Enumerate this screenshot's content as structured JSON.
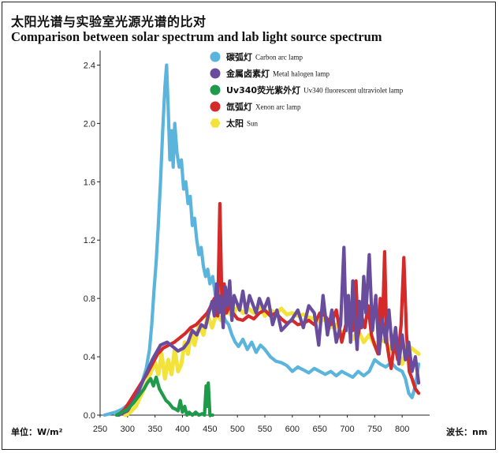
{
  "chart_data": {
    "type": "line",
    "title": "太阳光谱与实验室光源光谱的比对",
    "subtitle": "Comparison between solar spectrum and lab light source spectrum",
    "ylabel": "单位：W/m²",
    "xlabel": "波长：nm",
    "xlim": [
      250,
      850
    ],
    "ylim": [
      0,
      2.5
    ],
    "x_ticks": [
      "250",
      "300",
      "350",
      "400",
      "450",
      "500",
      "550",
      "600",
      "650",
      "700",
      "750",
      "800"
    ],
    "y_ticks": [
      "0.0",
      "0.4",
      "0.8",
      "1.2",
      "1.6",
      "2.0",
      "2.4"
    ],
    "series": [
      {
        "name_cn": "碳弧灯",
        "name_en": "Carbon arc lamp",
        "color": "#5bb4dc",
        "marker": "circle",
        "x": [
          258,
          268,
          278,
          290,
          300,
          310,
          318,
          326,
          334,
          340,
          344,
          348,
          352,
          356,
          360,
          364,
          368,
          371,
          374,
          377,
          380,
          383,
          386,
          390,
          394,
          398,
          402,
          406,
          410,
          414,
          418,
          422,
          426,
          430,
          434,
          438,
          442,
          446,
          450,
          455,
          460,
          466,
          472,
          478,
          484,
          490,
          496,
          502,
          510,
          518,
          526,
          534,
          542,
          550,
          560,
          570,
          580,
          590,
          600,
          610,
          620,
          630,
          640,
          650,
          660,
          670,
          680,
          690,
          700,
          710,
          720,
          730,
          740,
          750,
          760,
          770,
          780,
          790,
          800,
          806,
          812,
          818,
          824,
          830
        ],
        "y": [
          0.0,
          0.01,
          0.02,
          0.04,
          0.07,
          0.11,
          0.16,
          0.22,
          0.32,
          0.45,
          0.62,
          0.85,
          1.05,
          1.3,
          1.6,
          1.95,
          2.25,
          2.4,
          2.1,
          1.75,
          1.95,
          1.7,
          2.0,
          1.8,
          1.7,
          1.75,
          1.55,
          1.6,
          1.45,
          1.5,
          1.3,
          1.35,
          1.2,
          1.1,
          1.15,
          1.02,
          0.95,
          1.0,
          0.9,
          0.95,
          0.82,
          0.75,
          0.7,
          0.65,
          0.62,
          0.55,
          0.5,
          0.47,
          0.52,
          0.45,
          0.5,
          0.43,
          0.48,
          0.45,
          0.4,
          0.37,
          0.36,
          0.34,
          0.3,
          0.33,
          0.31,
          0.29,
          0.32,
          0.3,
          0.28,
          0.3,
          0.27,
          0.3,
          0.28,
          0.26,
          0.3,
          0.27,
          0.3,
          0.38,
          0.35,
          0.33,
          0.36,
          0.32,
          0.3,
          0.25,
          0.15,
          0.12,
          0.2,
          0.35
        ]
      },
      {
        "name_cn": "金属卤素灯",
        "name_en": "Metal halogen lamp",
        "color": "#6a4c9c",
        "marker": "circle",
        "x": [
          284,
          300,
          315,
          330,
          345,
          360,
          372,
          382,
          392,
          402,
          410,
          418,
          426,
          434,
          442,
          448,
          454,
          458,
          462,
          466,
          470,
          474,
          478,
          482,
          486,
          490,
          494,
          498,
          504,
          510,
          516,
          522,
          528,
          534,
          540,
          548,
          556,
          564,
          572,
          580,
          590,
          600,
          610,
          620,
          630,
          640,
          648,
          656,
          664,
          672,
          680,
          688,
          694,
          698,
          702,
          706,
          710,
          714,
          718,
          722,
          726,
          730,
          734,
          740,
          746,
          752,
          758,
          764,
          770,
          776,
          782,
          788,
          794,
          800,
          806,
          812,
          818,
          824,
          830
        ],
        "y": [
          0.0,
          0.03,
          0.12,
          0.25,
          0.38,
          0.48,
          0.5,
          0.47,
          0.44,
          0.46,
          0.5,
          0.58,
          0.55,
          0.62,
          0.6,
          0.7,
          0.78,
          0.68,
          0.9,
          0.7,
          0.82,
          0.6,
          0.88,
          0.75,
          0.92,
          0.65,
          0.82,
          0.78,
          0.72,
          0.85,
          0.7,
          0.82,
          0.76,
          0.7,
          0.8,
          0.72,
          0.8,
          0.62,
          0.72,
          0.58,
          0.62,
          0.66,
          0.72,
          0.6,
          0.75,
          0.7,
          0.48,
          0.82,
          0.55,
          0.72,
          0.5,
          0.62,
          1.15,
          0.58,
          0.82,
          0.5,
          0.92,
          0.66,
          0.45,
          0.78,
          0.6,
          0.95,
          0.7,
          1.1,
          0.58,
          0.82,
          0.42,
          0.66,
          0.5,
          0.72,
          0.45,
          0.6,
          0.35,
          0.55,
          0.38,
          0.5,
          0.3,
          0.4,
          0.22
        ]
      },
      {
        "name_cn": "Uv340荧光紫外灯",
        "name_en": "Uv340 fluorescent ultraviolet lamp",
        "color": "#1e9a4a",
        "marker": "circle",
        "x": [
          280,
          290,
          300,
          310,
          320,
          330,
          336,
          342,
          347,
          352,
          358,
          364,
          370,
          376,
          382,
          388,
          392,
          396,
          400,
          404,
          408,
          412,
          418,
          424,
          430,
          436,
          440,
          443,
          445,
          447,
          450,
          455
        ],
        "y": [
          0.0,
          0.02,
          0.04,
          0.08,
          0.13,
          0.18,
          0.22,
          0.25,
          0.2,
          0.26,
          0.18,
          0.14,
          0.1,
          0.08,
          0.05,
          0.04,
          0.03,
          0.1,
          0.02,
          0.06,
          0.0,
          0.02,
          0.0,
          0.02,
          0.0,
          0.01,
          0.0,
          0.2,
          0.06,
          0.22,
          0.0,
          0.0
        ]
      },
      {
        "name_cn": "氙弧灯",
        "name_en": "Xenon arc lamp",
        "color": "#d42a2a",
        "marker": "circle",
        "x": [
          283,
          295,
          305,
          315,
          325,
          335,
          345,
          355,
          365,
          375,
          385,
          395,
          405,
          415,
          425,
          435,
          445,
          452,
          458,
          464,
          468,
          472,
          476,
          480,
          486,
          492,
          500,
          510,
          520,
          530,
          540,
          550,
          560,
          570,
          580,
          590,
          600,
          610,
          620,
          630,
          640,
          650,
          660,
          670,
          680,
          690,
          700,
          710,
          716,
          720,
          726,
          732,
          738,
          744,
          750,
          756,
          760,
          764,
          768,
          772,
          776,
          780,
          786,
          792,
          798,
          803,
          808,
          813,
          818,
          824,
          830
        ],
        "y": [
          0.0,
          0.04,
          0.1,
          0.16,
          0.22,
          0.28,
          0.35,
          0.42,
          0.46,
          0.48,
          0.5,
          0.53,
          0.56,
          0.6,
          0.62,
          0.66,
          0.7,
          0.75,
          0.8,
          0.68,
          1.45,
          0.72,
          0.9,
          0.7,
          0.75,
          0.7,
          0.66,
          0.65,
          0.68,
          0.66,
          0.7,
          0.72,
          0.68,
          0.7,
          0.66,
          0.63,
          0.65,
          0.62,
          0.63,
          0.65,
          0.62,
          0.7,
          0.68,
          0.62,
          0.72,
          0.5,
          0.66,
          0.58,
          0.92,
          0.55,
          0.68,
          0.6,
          0.75,
          0.55,
          0.48,
          0.42,
          0.8,
          0.58,
          1.12,
          0.5,
          0.4,
          0.32,
          0.5,
          0.38,
          0.62,
          1.08,
          0.55,
          0.3,
          0.25,
          0.18,
          0.15
        ]
      },
      {
        "name_cn": "太阳",
        "name_en": "Sun",
        "color": "#f2e23a",
        "marker": "hexagon",
        "x": [
          296,
          305,
          315,
          325,
          335,
          343,
          350,
          356,
          362,
          368,
          374,
          380,
          386,
          392,
          398,
          404,
          410,
          416,
          422,
          430,
          438,
          446,
          454,
          462,
          470,
          480,
          490,
          500,
          510,
          520,
          530,
          540,
          550,
          560,
          570,
          580,
          590,
          600,
          610,
          620,
          630,
          640,
          650,
          660,
          670,
          680,
          690,
          700,
          710,
          720,
          730,
          740,
          750,
          760,
          770,
          780,
          790,
          800,
          810,
          820,
          830
        ],
        "y": [
          0.0,
          0.02,
          0.06,
          0.14,
          0.22,
          0.3,
          0.36,
          0.28,
          0.42,
          0.25,
          0.38,
          0.28,
          0.45,
          0.3,
          0.35,
          0.5,
          0.42,
          0.58,
          0.48,
          0.62,
          0.55,
          0.68,
          0.6,
          0.7,
          0.65,
          0.72,
          0.68,
          0.74,
          0.7,
          0.73,
          0.7,
          0.75,
          0.68,
          0.72,
          0.7,
          0.73,
          0.69,
          0.7,
          0.68,
          0.69,
          0.67,
          0.66,
          0.64,
          0.66,
          0.6,
          0.62,
          0.56,
          0.6,
          0.52,
          0.58,
          0.5,
          0.55,
          0.48,
          0.52,
          0.5,
          0.44,
          0.46,
          0.35,
          0.48,
          0.45,
          0.42
        ]
      }
    ]
  }
}
